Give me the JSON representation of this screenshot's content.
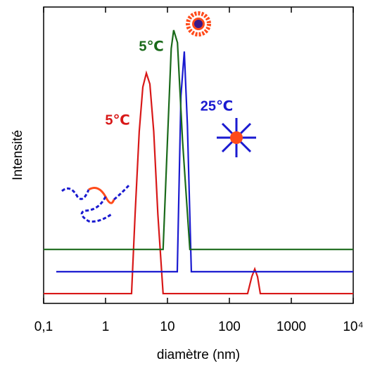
{
  "chart_data": {
    "type": "line",
    "xlabel": "diamètre (nm)",
    "ylabel": "Intensité",
    "xscale": "log",
    "xlim": [
      0.1,
      10000
    ],
    "xticks": [
      {
        "value": 0.1,
        "label": "0,1"
      },
      1,
      10,
      100,
      1000,
      {
        "value": 10000,
        "label": "10⁴"
      }
    ],
    "ylim": [
      0,
      100
    ],
    "series": [
      {
        "name": "5℃",
        "color": "#d81818",
        "x": [
          0.1,
          2.63,
          3.0,
          3.5,
          4.0,
          4.56,
          5.2,
          6.0,
          7.0,
          8.5,
          197,
          230,
          257,
          285,
          316,
          10000
        ],
        "values": [
          3.3,
          3.3,
          30,
          58,
          73,
          77.7,
          74,
          58,
          30,
          3.3,
          3.3,
          9,
          11.6,
          9,
          3.3,
          3.3
        ]
      },
      {
        "name": "25℃",
        "color": "#1a1ad0",
        "x": [
          0.16,
          14.4,
          16.5,
          18.7,
          21,
          24.3,
          10000
        ],
        "values": [
          10.7,
          10.7,
          70,
          85,
          60,
          10.7,
          10.7
        ]
      },
      {
        "name": "5℃",
        "color": "#1a6a1a",
        "x": [
          0.1,
          8.5,
          10.0,
          11.5,
          12.6,
          14.5,
          17.5,
          23,
          10000
        ],
        "values": [
          18.2,
          18.2,
          55,
          86,
          92.2,
          88,
          55,
          18.2,
          18.2
        ]
      }
    ]
  }
}
